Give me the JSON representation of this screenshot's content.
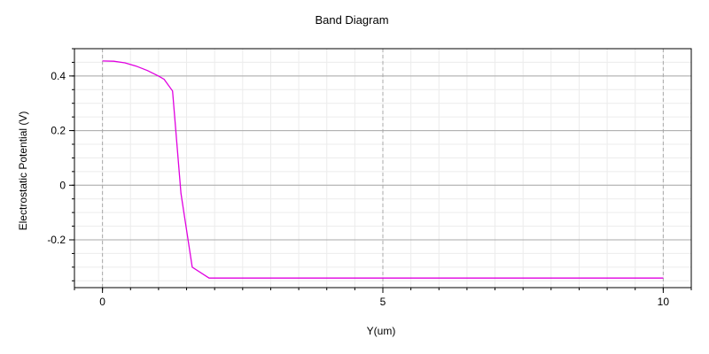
{
  "chart_data": {
    "type": "line",
    "title": "Band Diagram",
    "xlabel": "Y(um)",
    "ylabel": "Electrostatic Potential (V)",
    "xlim": [
      -0.5,
      10.5
    ],
    "ylim": [
      -0.375,
      0.5
    ],
    "x_ticks": [
      0,
      5,
      10
    ],
    "x_tick_labels": [
      "0",
      "5",
      "10"
    ],
    "y_ticks": [
      -0.2,
      0,
      0.2,
      0.4
    ],
    "y_tick_labels": [
      "-0.2",
      "0",
      "0.2",
      "0.4"
    ],
    "x_minor_step": 0.5,
    "y_minor_step": 0.05,
    "grid": true,
    "series": [
      {
        "color": "#e000e0",
        "x": [
          0.0,
          0.2,
          0.4,
          0.6,
          0.8,
          1.0,
          1.1,
          1.25,
          1.4,
          1.6,
          1.9,
          3.0,
          5.0,
          7.0,
          10.0
        ],
        "y": [
          0.455,
          0.454,
          0.448,
          0.436,
          0.42,
          0.4,
          0.388,
          0.345,
          -0.03,
          -0.3,
          -0.34,
          -0.34,
          -0.34,
          -0.34,
          -0.34
        ]
      }
    ]
  }
}
